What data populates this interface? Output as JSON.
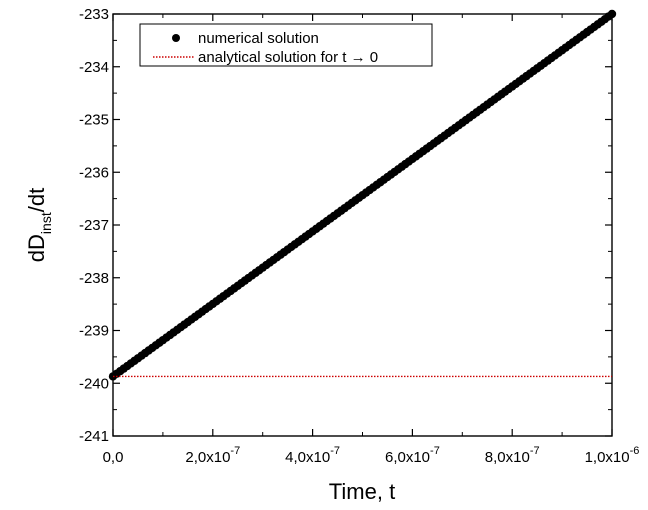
{
  "chart_data": {
    "type": "line",
    "xlabel": "Time, t",
    "ylabel_main": "dD",
    "ylabel_sub": "inst",
    "ylabel_tail": "/dt",
    "xlim": [
      0,
      1e-06
    ],
    "ylim": [
      -241,
      -233
    ],
    "x_ticks": [
      {
        "value": 0,
        "mantissa": "0,0",
        "exponent": ""
      },
      {
        "value": 2e-07,
        "mantissa": "2,0x10",
        "exponent": "-7"
      },
      {
        "value": 4e-07,
        "mantissa": "4,0x10",
        "exponent": "-7"
      },
      {
        "value": 6e-07,
        "mantissa": "6,0x10",
        "exponent": "-7"
      },
      {
        "value": 8e-07,
        "mantissa": "8,0x10",
        "exponent": "-7"
      },
      {
        "value": 1e-06,
        "mantissa": "1,0x10",
        "exponent": "-6"
      }
    ],
    "y_ticks": [
      {
        "value": -241,
        "label": "-241"
      },
      {
        "value": -240,
        "label": "-240"
      },
      {
        "value": -239,
        "label": "-239"
      },
      {
        "value": -238,
        "label": "-238"
      },
      {
        "value": -237,
        "label": "-237"
      },
      {
        "value": -236,
        "label": "-236"
      },
      {
        "value": -235,
        "label": "-235"
      },
      {
        "value": -234,
        "label": "-234"
      },
      {
        "value": -233,
        "label": "-233"
      }
    ],
    "grid": false,
    "legend_position": "top-left",
    "series": [
      {
        "name": "numerical solution",
        "style": "dots",
        "color": "#000000",
        "x": [
          0,
          1e-06
        ],
        "y": [
          -239.87,
          -233.0
        ]
      },
      {
        "name": "analytical solution for t → 0",
        "style": "dotted-line",
        "color": "#cc0000",
        "x": [
          0,
          1e-06
        ],
        "y": [
          -239.87,
          -239.87
        ]
      }
    ]
  }
}
